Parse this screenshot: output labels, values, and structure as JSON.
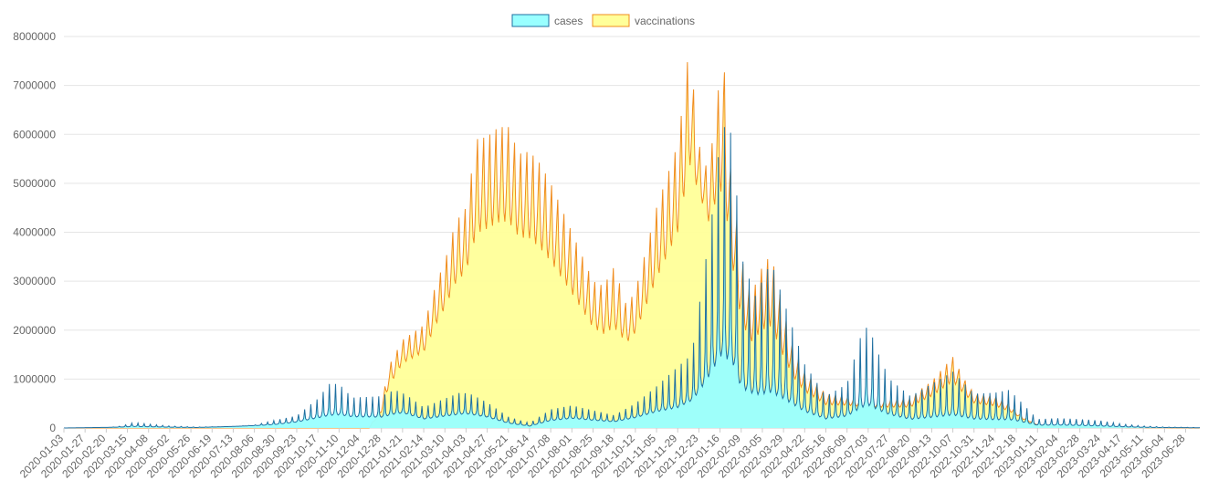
{
  "chart_data": {
    "type": "area",
    "legend_position": "top-center",
    "grid": true,
    "ylim": [
      0,
      8000000
    ],
    "yticks": [
      0,
      1000000,
      2000000,
      3000000,
      4000000,
      5000000,
      6000000,
      7000000,
      8000000
    ],
    "x_start": "2020-01-03",
    "x_end": "2023-07-14",
    "x_ticks": [
      "2020-01-03",
      "2020-01-27",
      "2020-02-20",
      "2020-03-15",
      "2020-04-08",
      "2020-05-02",
      "2020-05-26",
      "2020-06-19",
      "2020-07-13",
      "2020-08-06",
      "2020-08-30",
      "2020-09-23",
      "2020-10-17",
      "2020-11-10",
      "2020-12-04",
      "2020-12-28",
      "2021-01-21",
      "2021-02-14",
      "2021-03-10",
      "2021-04-03",
      "2021-04-27",
      "2021-05-21",
      "2021-06-14",
      "2021-07-08",
      "2021-08-01",
      "2021-08-25",
      "2021-09-18",
      "2021-10-12",
      "2021-11-05",
      "2021-11-29",
      "2021-12-23",
      "2022-01-16",
      "2022-02-09",
      "2022-03-05",
      "2022-03-29",
      "2022-04-22",
      "2022-05-16",
      "2022-06-09",
      "2022-07-03",
      "2022-07-27",
      "2022-08-20",
      "2022-09-13",
      "2022-10-07",
      "2022-10-31",
      "2022-11-24",
      "2022-12-18",
      "2023-01-11",
      "2023-02-04",
      "2023-02-28",
      "2023-03-24",
      "2023-04-17",
      "2023-05-11",
      "2023-06-04",
      "2023-06-28"
    ],
    "series": [
      {
        "name": "cases",
        "fill": "#99FFFF",
        "stroke": "#1F6FA0",
        "weekly_peak": [
          [
            "2020-01-03",
            0
          ],
          [
            "2020-02-20",
            2000
          ],
          [
            "2020-03-08",
            40000
          ],
          [
            "2020-03-22",
            110000
          ],
          [
            "2020-04-08",
            80000
          ],
          [
            "2020-05-02",
            40000
          ],
          [
            "2020-06-01",
            20000
          ],
          [
            "2020-07-13",
            30000
          ],
          [
            "2020-08-06",
            60000
          ],
          [
            "2020-08-30",
            160000
          ],
          [
            "2020-09-23",
            250000
          ],
          [
            "2020-10-17",
            600000
          ],
          [
            "2020-10-30",
            900000
          ],
          [
            "2020-11-10",
            900000
          ],
          [
            "2020-11-25",
            620000
          ],
          [
            "2020-12-28",
            650000
          ],
          [
            "2021-01-12",
            780000
          ],
          [
            "2021-01-25",
            680000
          ],
          [
            "2021-02-14",
            420000
          ],
          [
            "2021-03-10",
            600000
          ],
          [
            "2021-03-28",
            730000
          ],
          [
            "2021-04-10",
            680000
          ],
          [
            "2021-04-27",
            520000
          ],
          [
            "2021-05-21",
            230000
          ],
          [
            "2021-06-14",
            100000
          ],
          [
            "2021-07-08",
            380000
          ],
          [
            "2021-08-01",
            460000
          ],
          [
            "2021-08-25",
            360000
          ],
          [
            "2021-09-18",
            260000
          ],
          [
            "2021-10-12",
            500000
          ],
          [
            "2021-11-05",
            850000
          ],
          [
            "2021-11-29",
            1250000
          ],
          [
            "2021-12-15",
            1500000
          ],
          [
            "2021-12-25",
            2700000
          ],
          [
            "2022-01-06",
            4200000
          ],
          [
            "2022-01-18",
            6200000
          ],
          [
            "2022-01-30",
            6000000
          ],
          [
            "2022-02-09",
            3500000
          ],
          [
            "2022-02-25",
            2700000
          ],
          [
            "2022-03-15",
            3400000
          ],
          [
            "2022-03-29",
            2600000
          ],
          [
            "2022-04-22",
            1300000
          ],
          [
            "2022-05-16",
            650000
          ],
          [
            "2022-06-09",
            900000
          ],
          [
            "2022-06-25",
            1900000
          ],
          [
            "2022-07-03",
            2100000
          ],
          [
            "2022-07-15",
            1500000
          ],
          [
            "2022-07-27",
            1000000
          ],
          [
            "2022-08-20",
            650000
          ],
          [
            "2022-09-13",
            900000
          ],
          [
            "2022-10-07",
            1150000
          ],
          [
            "2022-10-31",
            700000
          ],
          [
            "2022-11-24",
            720000
          ],
          [
            "2022-12-10",
            780000
          ],
          [
            "2022-12-25",
            500000
          ],
          [
            "2023-01-11",
            180000
          ],
          [
            "2023-02-04",
            200000
          ],
          [
            "2023-02-28",
            180000
          ],
          [
            "2023-03-24",
            150000
          ],
          [
            "2023-04-17",
            80000
          ],
          [
            "2023-05-11",
            40000
          ],
          [
            "2023-06-04",
            20000
          ],
          [
            "2023-07-14",
            10000
          ]
        ],
        "weekly_base": [
          [
            "2020-01-03",
            0
          ],
          [
            "2020-03-22",
            20000
          ],
          [
            "2020-06-01",
            8000
          ],
          [
            "2020-08-30",
            60000
          ],
          [
            "2020-10-17",
            150000
          ],
          [
            "2020-11-10",
            180000
          ],
          [
            "2020-12-28",
            160000
          ],
          [
            "2021-01-21",
            250000
          ],
          [
            "2021-02-14",
            150000
          ],
          [
            "2021-03-10",
            190000
          ],
          [
            "2021-04-03",
            230000
          ],
          [
            "2021-04-27",
            180000
          ],
          [
            "2021-05-21",
            80000
          ],
          [
            "2021-06-14",
            30000
          ],
          [
            "2021-07-08",
            120000
          ],
          [
            "2021-08-01",
            160000
          ],
          [
            "2021-08-25",
            130000
          ],
          [
            "2021-09-18",
            110000
          ],
          [
            "2021-10-12",
            170000
          ],
          [
            "2021-11-05",
            260000
          ],
          [
            "2021-11-29",
            300000
          ],
          [
            "2021-12-23",
            500000
          ],
          [
            "2022-01-16",
            850000
          ],
          [
            "2022-01-30",
            700000
          ],
          [
            "2022-02-09",
            450000
          ],
          [
            "2022-03-05",
            380000
          ],
          [
            "2022-03-29",
            320000
          ],
          [
            "2022-04-22",
            200000
          ],
          [
            "2022-05-16",
            120000
          ],
          [
            "2022-06-09",
            150000
          ],
          [
            "2022-07-03",
            240000
          ],
          [
            "2022-07-27",
            170000
          ],
          [
            "2022-08-20",
            110000
          ],
          [
            "2022-09-13",
            120000
          ],
          [
            "2022-10-07",
            140000
          ],
          [
            "2022-10-31",
            110000
          ],
          [
            "2022-11-24",
            90000
          ],
          [
            "2022-12-18",
            80000
          ],
          [
            "2023-01-11",
            40000
          ],
          [
            "2023-02-04",
            40000
          ],
          [
            "2023-03-24",
            25000
          ],
          [
            "2023-05-11",
            10000
          ],
          [
            "2023-07-14",
            3000
          ]
        ]
      },
      {
        "name": "vaccinations",
        "fill": "#FFFF99",
        "stroke": "#F08C1E",
        "weekly_peak": [
          [
            "2020-01-03",
            0
          ],
          [
            "2020-12-14",
            0
          ],
          [
            "2020-12-28",
            450000
          ],
          [
            "2021-01-05",
            1250000
          ],
          [
            "2021-01-21",
            1800000
          ],
          [
            "2021-02-14",
            2100000
          ],
          [
            "2021-03-01",
            3000000
          ],
          [
            "2021-03-10",
            3400000
          ],
          [
            "2021-03-22",
            4200000
          ],
          [
            "2021-04-03",
            4500000
          ],
          [
            "2021-04-15",
            5900000
          ],
          [
            "2021-04-27",
            5950000
          ],
          [
            "2021-05-10",
            6150000
          ],
          [
            "2021-05-21",
            6150000
          ],
          [
            "2021-06-02",
            5600000
          ],
          [
            "2021-06-14",
            5650000
          ],
          [
            "2021-06-26",
            5400000
          ],
          [
            "2021-07-08",
            5000000
          ],
          [
            "2021-07-20",
            4500000
          ],
          [
            "2021-08-01",
            4000000
          ],
          [
            "2021-08-13",
            3500000
          ],
          [
            "2021-08-25",
            3000000
          ],
          [
            "2021-09-06",
            2900000
          ],
          [
            "2021-09-18",
            3300000
          ],
          [
            "2021-10-02",
            2500000
          ],
          [
            "2021-10-12",
            2800000
          ],
          [
            "2021-10-25",
            3700000
          ],
          [
            "2021-11-05",
            4500000
          ],
          [
            "2021-11-18",
            5200000
          ],
          [
            "2021-11-29",
            5800000
          ],
          [
            "2021-12-08",
            7100000
          ],
          [
            "2021-12-12",
            7850000
          ],
          [
            "2021-12-23",
            5800000
          ],
          [
            "2022-01-03",
            5200000
          ],
          [
            "2022-01-14",
            6900000
          ],
          [
            "2022-01-20",
            7550000
          ],
          [
            "2022-01-28",
            5300000
          ],
          [
            "2022-02-09",
            3500000
          ],
          [
            "2022-02-20",
            2700000
          ],
          [
            "2022-03-05",
            3300000
          ],
          [
            "2022-03-15",
            3550000
          ],
          [
            "2022-03-29",
            2400000
          ],
          [
            "2022-04-10",
            1600000
          ],
          [
            "2022-04-22",
            1150000
          ],
          [
            "2022-05-16",
            700000
          ],
          [
            "2022-06-09",
            650000
          ],
          [
            "2022-07-03",
            550000
          ],
          [
            "2022-07-27",
            600000
          ],
          [
            "2022-08-20",
            600000
          ],
          [
            "2022-09-01",
            800000
          ],
          [
            "2022-09-13",
            950000
          ],
          [
            "2022-09-27",
            1250000
          ],
          [
            "2022-10-07",
            1450000
          ],
          [
            "2022-10-20",
            1000000
          ],
          [
            "2022-10-31",
            700000
          ],
          [
            "2022-11-24",
            650000
          ],
          [
            "2022-12-10",
            500000
          ],
          [
            "2022-12-25",
            250000
          ],
          [
            "2023-01-11",
            80000
          ],
          [
            "2023-02-04",
            30000
          ],
          [
            "2023-04-01",
            10000
          ],
          [
            "2023-07-14",
            0
          ]
        ],
        "weekly_base": [
          [
            "2020-01-03",
            0
          ],
          [
            "2020-12-14",
            0
          ],
          [
            "2020-12-28",
            200000
          ],
          [
            "2021-01-21",
            850000
          ],
          [
            "2021-02-14",
            1000000
          ],
          [
            "2021-03-10",
            1500000
          ],
          [
            "2021-04-03",
            1900000
          ],
          [
            "2021-04-27",
            2200000
          ],
          [
            "2021-05-21",
            2300000
          ],
          [
            "2021-06-14",
            2100000
          ],
          [
            "2021-07-08",
            1800000
          ],
          [
            "2021-08-01",
            1500000
          ],
          [
            "2021-08-25",
            1100000
          ],
          [
            "2021-09-18",
            800000
          ],
          [
            "2021-10-12",
            1100000
          ],
          [
            "2021-11-05",
            1600000
          ],
          [
            "2021-11-29",
            2200000
          ],
          [
            "2021-12-15",
            3200000
          ],
          [
            "2021-12-23",
            3800000
          ],
          [
            "2022-01-04",
            3200000
          ],
          [
            "2022-01-16",
            2500000
          ],
          [
            "2022-01-28",
            1800000
          ],
          [
            "2022-02-09",
            900000
          ],
          [
            "2022-03-05",
            700000
          ],
          [
            "2022-03-29",
            500000
          ],
          [
            "2022-04-22",
            350000
          ],
          [
            "2022-05-16",
            250000
          ],
          [
            "2022-06-09",
            280000
          ],
          [
            "2022-07-03",
            300000
          ],
          [
            "2022-07-27",
            250000
          ],
          [
            "2022-08-20",
            250000
          ],
          [
            "2022-09-13",
            350000
          ],
          [
            "2022-10-07",
            450000
          ],
          [
            "2022-10-31",
            320000
          ],
          [
            "2022-11-24",
            250000
          ],
          [
            "2022-12-18",
            150000
          ],
          [
            "2023-01-11",
            40000
          ],
          [
            "2023-02-04",
            15000
          ],
          [
            "2023-07-14",
            0
          ]
        ]
      }
    ]
  }
}
